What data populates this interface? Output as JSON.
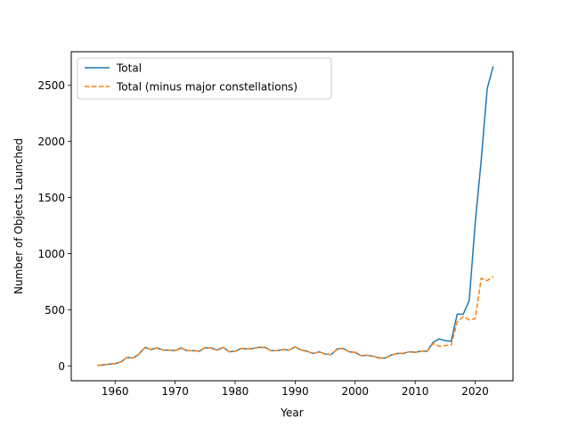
{
  "chart_data": {
    "type": "line",
    "xlabel": "Year",
    "ylabel": "Number of Objects Launched",
    "xlim": [
      1952.7,
      2026.3
    ],
    "ylim": [
      -133,
      2800
    ],
    "xticks": [
      1960,
      1970,
      1980,
      1990,
      2000,
      2010,
      2020
    ],
    "yticks": [
      0,
      500,
      1000,
      1500,
      2000,
      2500
    ],
    "legend_position": "top-left",
    "x": [
      1957,
      1958,
      1959,
      1960,
      1961,
      1962,
      1963,
      1964,
      1965,
      1966,
      1967,
      1968,
      1969,
      1970,
      1971,
      1972,
      1973,
      1974,
      1975,
      1976,
      1977,
      1978,
      1979,
      1980,
      1981,
      1982,
      1983,
      1984,
      1985,
      1986,
      1987,
      1988,
      1989,
      1990,
      1991,
      1992,
      1993,
      1994,
      1995,
      1996,
      1997,
      1998,
      1999,
      2000,
      2001,
      2002,
      2003,
      2004,
      2005,
      2006,
      2007,
      2008,
      2009,
      2010,
      2011,
      2012,
      2013,
      2014,
      2015,
      2016,
      2017,
      2018,
      2019,
      2020,
      2021,
      2022,
      2023
    ],
    "series": [
      {
        "name": "Total",
        "color": "#1f77b4",
        "dash": "solid",
        "values": [
          3,
          8,
          15,
          20,
          35,
          75,
          70,
          105,
          165,
          145,
          160,
          140,
          140,
          135,
          160,
          135,
          135,
          130,
          160,
          160,
          140,
          165,
          125,
          130,
          155,
          150,
          155,
          165,
          165,
          135,
          135,
          145,
          140,
          170,
          140,
          130,
          110,
          125,
          105,
          100,
          150,
          155,
          125,
          120,
          90,
          95,
          85,
          70,
          70,
          95,
          110,
          110,
          125,
          120,
          130,
          130,
          210,
          240,
          225,
          220,
          460,
          460,
          580,
          1270,
          1830,
          2470,
          2670
        ]
      },
      {
        "name": "Total (minus major constellations)",
        "color": "#ff7f0e",
        "dash": "dashed",
        "values": [
          3,
          8,
          15,
          20,
          35,
          75,
          70,
          105,
          165,
          145,
          160,
          140,
          140,
          135,
          160,
          135,
          135,
          130,
          160,
          160,
          140,
          165,
          125,
          130,
          155,
          150,
          155,
          165,
          165,
          135,
          135,
          145,
          140,
          170,
          140,
          130,
          110,
          125,
          105,
          100,
          150,
          155,
          125,
          120,
          90,
          95,
          85,
          70,
          70,
          95,
          110,
          110,
          125,
          120,
          130,
          130,
          200,
          175,
          180,
          185,
          390,
          440,
          410,
          420,
          780,
          760,
          795
        ]
      }
    ]
  }
}
